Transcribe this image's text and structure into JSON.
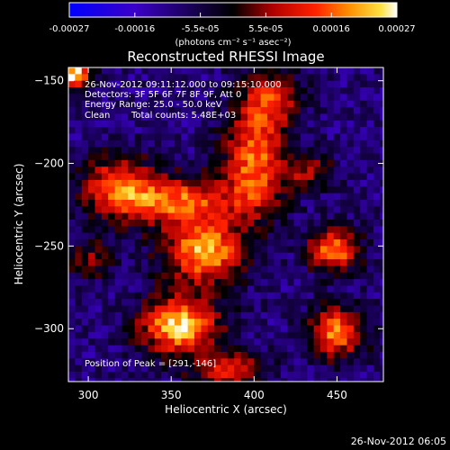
{
  "chart_data": {
    "type": "heatmap",
    "title": "Reconstructed RHESSI Image",
    "xlabel": "Heliocentric X (arcsec)",
    "ylabel": "Heliocentric Y (arcsec)",
    "xlim": [
      288,
      478
    ],
    "ylim": [
      -332,
      -142
    ],
    "x_ticks": [
      300,
      350,
      400,
      450
    ],
    "y_ticks": [
      -150,
      -200,
      -250,
      -300
    ],
    "colorbar": {
      "colormap": "blue-purple-red-orange-yellow-white",
      "range": [
        -0.00027,
        0.00027
      ],
      "tick_labels": [
        "-0.00027",
        "-0.00016",
        "-5.5e-05",
        "5.5e-05",
        "0.00016",
        "0.00027"
      ],
      "unit": "(photons cm⁻² s⁻¹ asec⁻²)"
    },
    "annotations": {
      "time_range": "26-Nov-2012 09:11:12.000 to 09:15:10.000",
      "detectors": "Detectors: 3F 5F 6F 7F 8F 9F, Att 0",
      "energy_range": "Energy Range: 25.0 - 50.0 keV",
      "method": "Clean",
      "total_counts": "Total counts: 5.48E+03",
      "peak": "Position of Peak = [291,-146]"
    },
    "sources": [
      {
        "x": 291,
        "y": -146,
        "amp": 1.0,
        "sx": 8,
        "sy": 6
      },
      {
        "x": 355,
        "y": -298,
        "amp": 0.95,
        "sx": 16,
        "sy": 12
      },
      {
        "x": 370,
        "y": -253,
        "amp": 0.9,
        "sx": 16,
        "sy": 13
      },
      {
        "x": 350,
        "y": -223,
        "amp": 0.75,
        "sx": 26,
        "sy": 10
      },
      {
        "x": 318,
        "y": -212,
        "amp": 0.6,
        "sx": 14,
        "sy": 12
      },
      {
        "x": 400,
        "y": -200,
        "amp": 0.75,
        "sx": 12,
        "sy": 22
      },
      {
        "x": 410,
        "y": -162,
        "amp": 0.55,
        "sx": 12,
        "sy": 12
      },
      {
        "x": 448,
        "y": -252,
        "amp": 0.8,
        "sx": 10,
        "sy": 9
      },
      {
        "x": 450,
        "y": -302,
        "amp": 0.8,
        "sx": 11,
        "sy": 10
      },
      {
        "x": 385,
        "y": -325,
        "amp": 0.6,
        "sx": 14,
        "sy": 7
      },
      {
        "x": 300,
        "y": -258,
        "amp": 0.35,
        "sx": 10,
        "sy": 8
      },
      {
        "x": 432,
        "y": -205,
        "amp": 0.4,
        "sx": 10,
        "sy": 8
      }
    ]
  },
  "footer_date": "26-Nov-2012 06:05"
}
